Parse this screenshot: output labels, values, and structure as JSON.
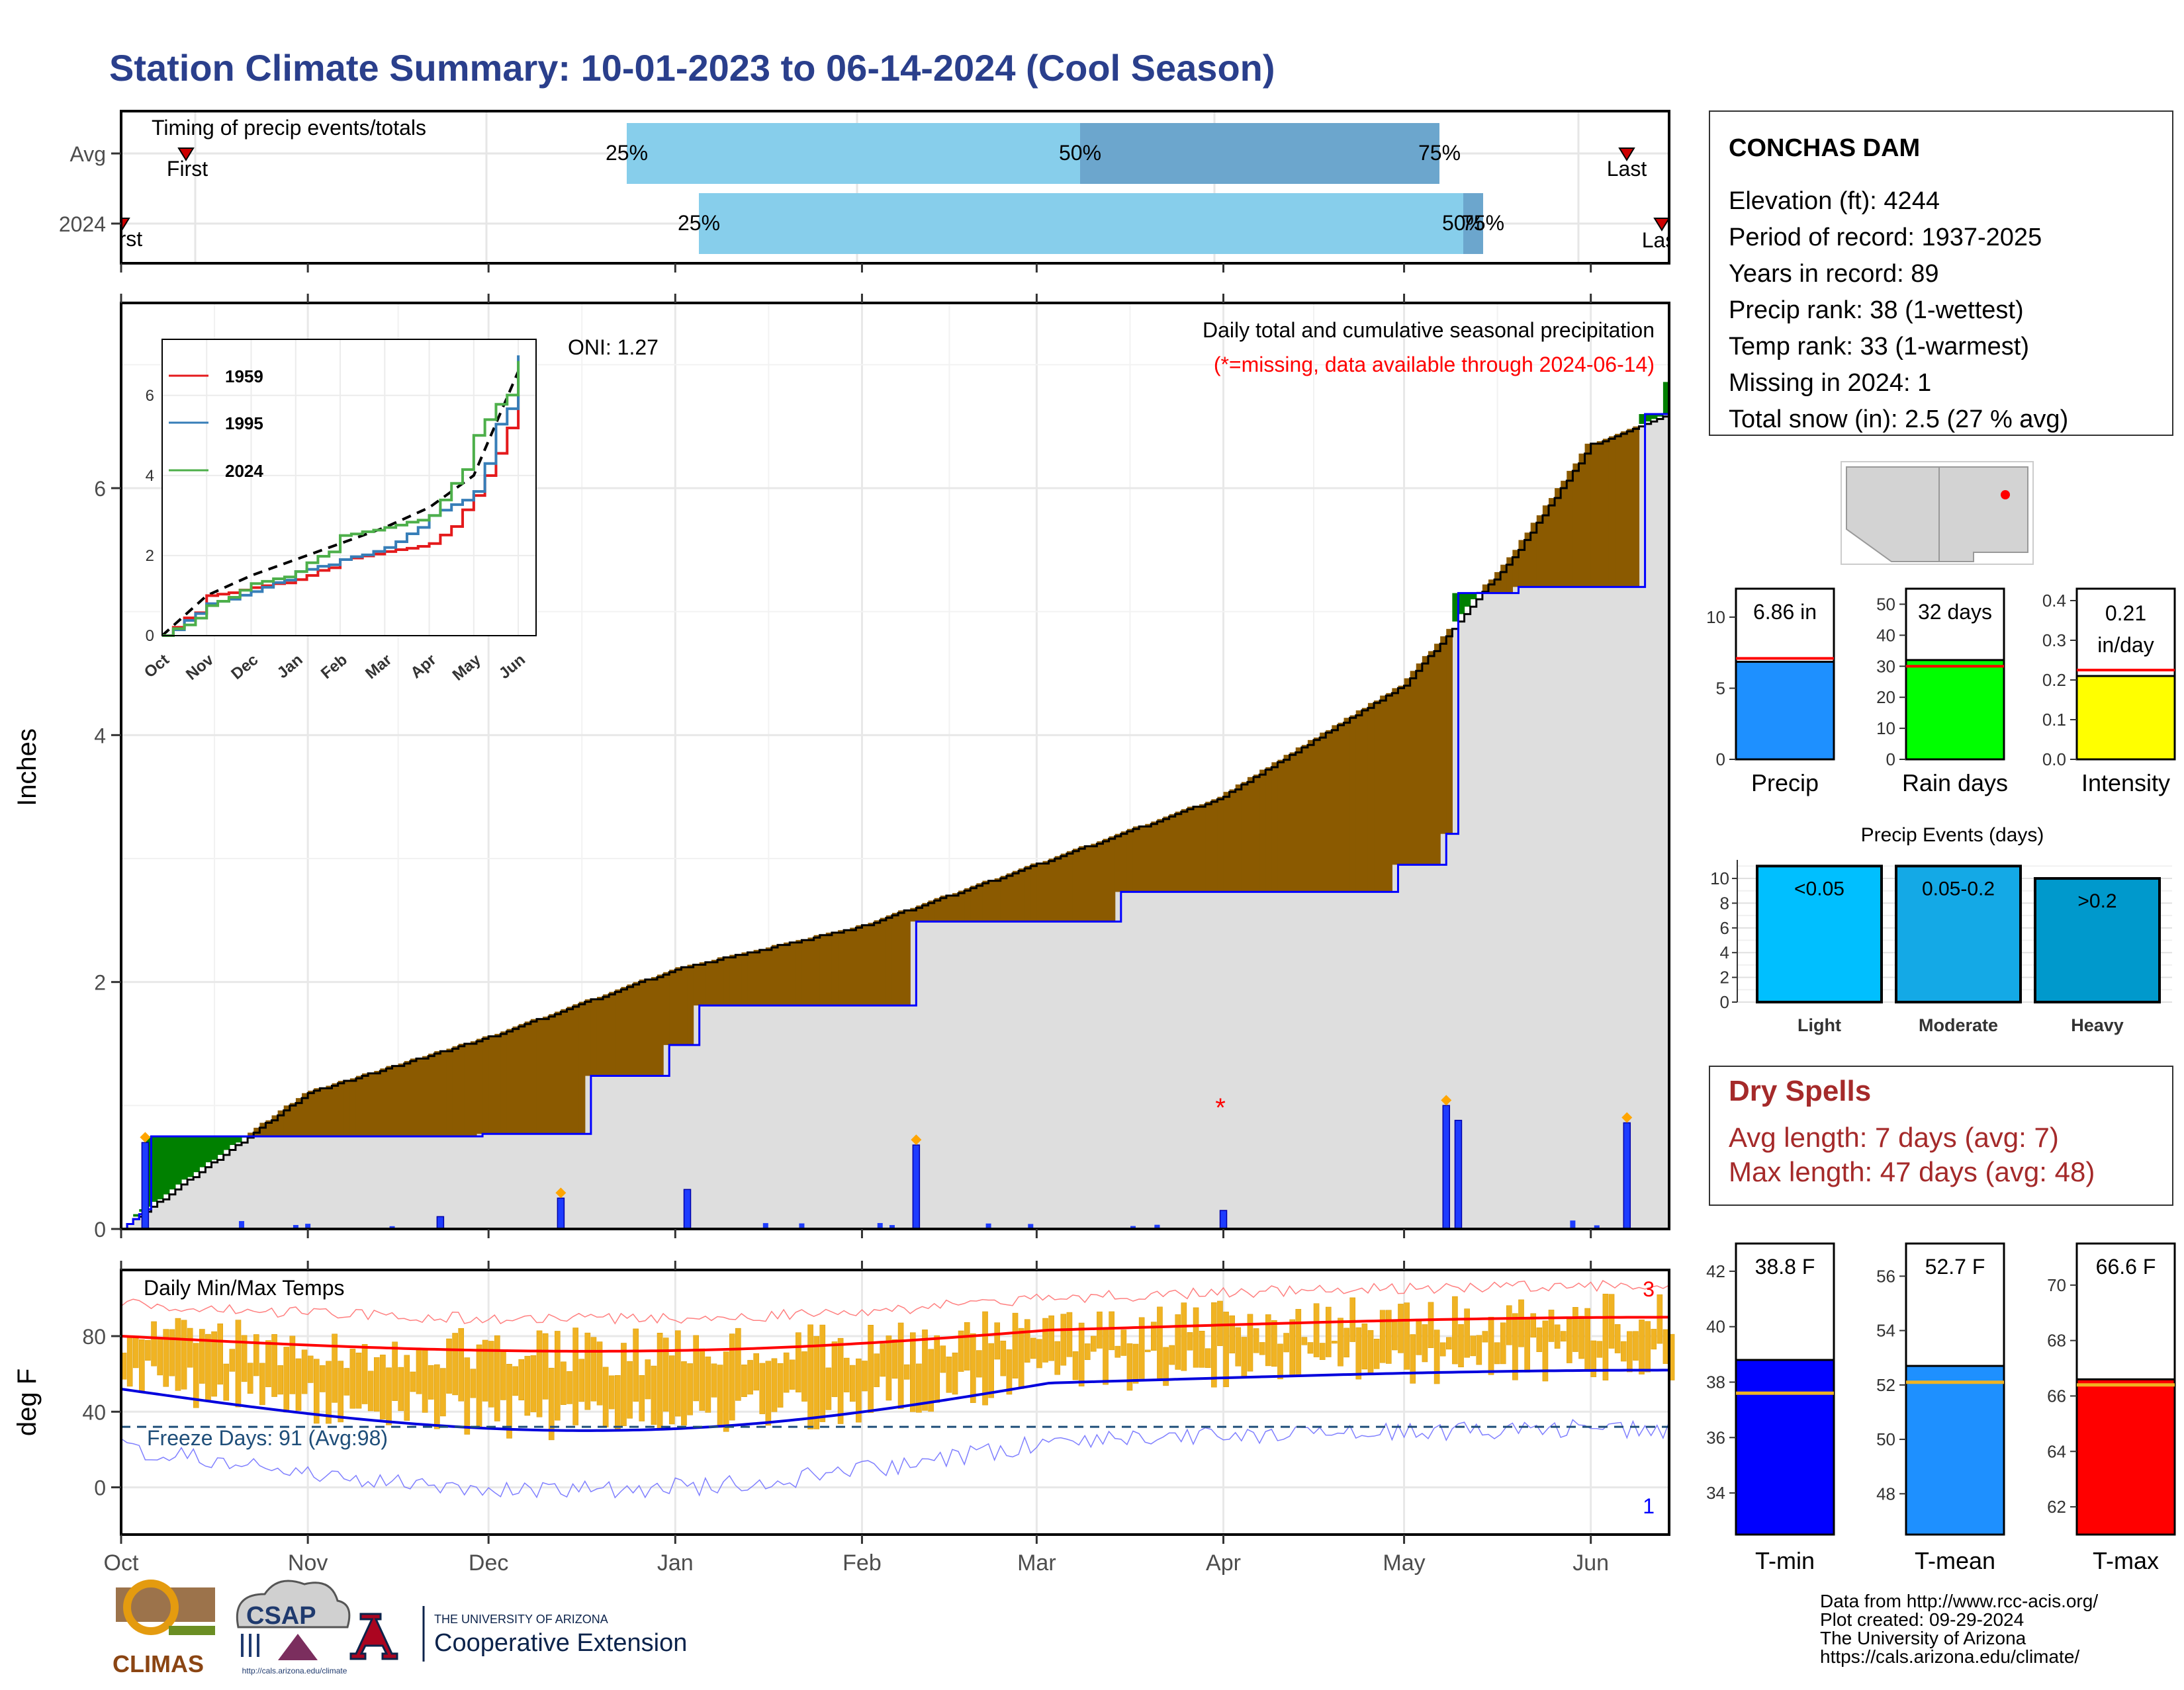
{
  "title": "Station Climate Summary: 10-01-2023 to 06-14-2024 (Cool Season)",
  "timing": {
    "heading": "Timing of precip events/totals",
    "rows": [
      "Avg",
      "2024"
    ],
    "avg": {
      "first": "First",
      "last": "Last",
      "p25": "25%",
      "p50": "50%",
      "p75": "75%"
    },
    "y2024": {
      "first": "First",
      "last": "Last",
      "p25": "25%",
      "p50": "50%",
      "p75": "75%"
    }
  },
  "station": {
    "name": "CONCHAS DAM",
    "lines": [
      "Elevation (ft): 4244",
      "Period of record: 1937-2025",
      "Years in record: 89",
      "Precip rank: 38 (1-wettest)",
      "Temp rank: 33 (1-warmest)",
      "Missing in 2024: 1",
      "Total snow (in): 2.5 (27 % avg)"
    ]
  },
  "main": {
    "ylabel": "Inches",
    "oni": "ONI: 1.27",
    "caption1": "Daily total and cumulative seasonal precipitation",
    "caption2": "(*=missing, data available through 2024-06-14)",
    "missing_marker": "*",
    "yticks": [
      "0",
      "2",
      "4",
      "6"
    ]
  },
  "inset": {
    "legend": [
      "1959",
      "1995",
      "2024"
    ],
    "colors": {
      "1959": "#e41a1c",
      "1995": "#377eb8",
      "2024": "#4daf4a"
    },
    "yticks": [
      "0",
      "2",
      "4",
      "6"
    ],
    "xticks": [
      "Oct",
      "Nov",
      "Dec",
      "Jan",
      "Feb",
      "Mar",
      "Apr",
      "May",
      "Jun"
    ]
  },
  "temps": {
    "heading": "Daily Min/Max Temps",
    "ylabel": "deg F",
    "freeze": "Freeze Days: 91 (Avg:98)",
    "count_hi": "3",
    "count_lo": "1",
    "yticks": [
      "0",
      "40",
      "80"
    ]
  },
  "months": [
    "Oct",
    "Nov",
    "Dec",
    "Jan",
    "Feb",
    "Mar",
    "Apr",
    "May",
    "Jun"
  ],
  "summary_bars": [
    {
      "label": "Precip",
      "value_text": "6.86 in",
      "value": 6.86,
      "avg": 7.1,
      "ticks": [
        "0",
        "5",
        "10"
      ],
      "max": 12,
      "color": "#1e90ff"
    },
    {
      "label": "Rain days",
      "value_text": "32 days",
      "value": 32,
      "avg": 30,
      "ticks": [
        "0",
        "10",
        "20",
        "30",
        "40",
        "50"
      ],
      "max": 55,
      "color": "#00ff00"
    },
    {
      "label": "Intensity",
      "value_text": "0.21 in/day",
      "value": 0.21,
      "avg": 0.225,
      "ticks": [
        "0.0",
        "0.1",
        "0.2",
        "0.3",
        "0.4"
      ],
      "max": 0.43,
      "color": "#ffff00"
    }
  ],
  "events": {
    "title": "Precip Events (days)",
    "ticks": [
      "0",
      "2",
      "4",
      "6",
      "8",
      "10"
    ],
    "bars": [
      {
        "label": "Light",
        "range": "<0.05",
        "value": 11,
        "color": "#00bfff"
      },
      {
        "label": "Moderate",
        "range": "0.05-0.2",
        "value": 11,
        "color": "#14a9e6"
      },
      {
        "label": "Heavy",
        "range": ">0.2",
        "value": 10,
        "color": "#0099cc"
      }
    ]
  },
  "dry_spells": {
    "title": "Dry Spells",
    "avg": "Avg length: 7 days (avg: 7)",
    "max": "Max length: 47 days (avg: 48)"
  },
  "temp_bars": [
    {
      "label": "T-min",
      "value_text": "38.8 F",
      "value": 38.8,
      "avg": 37.6,
      "ticks": [
        "34",
        "36",
        "38",
        "40",
        "42"
      ],
      "min": 32.5,
      "max": 43,
      "color": "#0000ff"
    },
    {
      "label": "T-mean",
      "value_text": "52.7 F",
      "value": 52.7,
      "avg": 52.1,
      "ticks": [
        "48",
        "50",
        "52",
        "54",
        "56"
      ],
      "min": 46.5,
      "max": 57.2,
      "color": "#1e90ff"
    },
    {
      "label": "T-max",
      "value_text": "66.6 F",
      "value": 66.6,
      "avg": 66.4,
      "ticks": [
        "62",
        "64",
        "66",
        "68",
        "70"
      ],
      "min": 61,
      "max": 71.5,
      "color": "#ff0000"
    }
  ],
  "footer": {
    "lines": [
      "Data from http://www.rcc-acis.org/",
      "Plot created: 09-29-2024",
      "The University of Arizona",
      "https://cals.arizona.edu/climate/"
    ],
    "logos": {
      "climas": "CLIMAS",
      "csap": "CSAP",
      "csap_url": "http://cals.arizona.edu/climate",
      "ua_small": "THE UNIVERSITY OF ARIZONA",
      "ua_big": "Cooperative Extension"
    }
  },
  "chart_data": {
    "type": "area",
    "title": "Daily total and cumulative seasonal precipitation",
    "ylabel": "Inches",
    "ylim": [
      0,
      7.5
    ],
    "x_range": [
      "2023-10-01",
      "2024-06-14"
    ],
    "series": [
      {
        "x": [
          "2023-10-01",
          "2023-10-05",
          "2023-10-06",
          "2023-10-31",
          "2023-11-30",
          "2023-12-18",
          "2023-12-31",
          "2024-01-05",
          "2024-02-10",
          "2024-03-15",
          "2024-04-30",
          "2024-05-08",
          "2024-05-10",
          "2024-05-20",
          "2024-06-10",
          "2024-06-14"
        ],
        "values": [
          0.0,
          0.05,
          0.75,
          0.75,
          0.77,
          1.24,
          1.49,
          1.81,
          2.49,
          2.73,
          2.95,
          3.2,
          5.15,
          5.2,
          6.6,
          6.86
        ]
      },
      {
        "x": [
          "2023-10-01",
          "2023-11-01",
          "2023-12-01",
          "2024-01-01",
          "2024-02-01",
          "2024-03-01",
          "2024-04-01",
          "2024-05-01",
          "2024-05-20",
          "2024-06-01",
          "2024-06-14"
        ],
        "values": [
          0.0,
          1.1,
          1.55,
          2.1,
          2.45,
          2.95,
          3.5,
          4.4,
          5.5,
          6.35,
          6.6
        ]
      }
    ],
    "daily_bars": [
      {
        "x": "2023-10-05",
        "value": 0.7
      },
      {
        "x": "2023-11-23",
        "value": 0.1
      },
      {
        "x": "2023-12-13",
        "value": 0.25
      },
      {
        "x": "2024-01-03",
        "value": 0.32
      },
      {
        "x": "2024-02-10",
        "value": 0.68
      },
      {
        "x": "2024-04-01",
        "value": 0.15
      },
      {
        "x": "2024-05-08",
        "value": 1.0
      },
      {
        "x": "2024-05-10",
        "value": 0.88
      },
      {
        "x": "2024-06-07",
        "value": 0.86
      }
    ],
    "inset": {
      "type": "line",
      "x": [
        "Oct",
        "Nov",
        "Dec",
        "Jan",
        "Feb",
        "Mar",
        "Apr",
        "May",
        "Jun"
      ],
      "ylim": [
        0,
        7
      ],
      "series": [
        {
          "name": "1959",
          "values": [
            0.0,
            1.0,
            1.2,
            1.4,
            1.9,
            2.1,
            2.3,
            3.5,
            6.0
          ]
        },
        {
          "name": "1995",
          "values": [
            0.0,
            0.8,
            1.1,
            1.6,
            1.9,
            2.2,
            3.0,
            3.6,
            7.0
          ]
        },
        {
          "name": "2024",
          "values": [
            0.0,
            0.75,
            1.3,
            1.6,
            2.5,
            2.7,
            3.0,
            5.0,
            6.86
          ]
        }
      ]
    },
    "temps": {
      "type": "bar",
      "ylim": [
        -25,
        115
      ],
      "freeze_line": 32,
      "avg_max_start": 80,
      "avg_max_end": 90,
      "avg_min_start": 52,
      "avg_min_end": 62
    }
  }
}
